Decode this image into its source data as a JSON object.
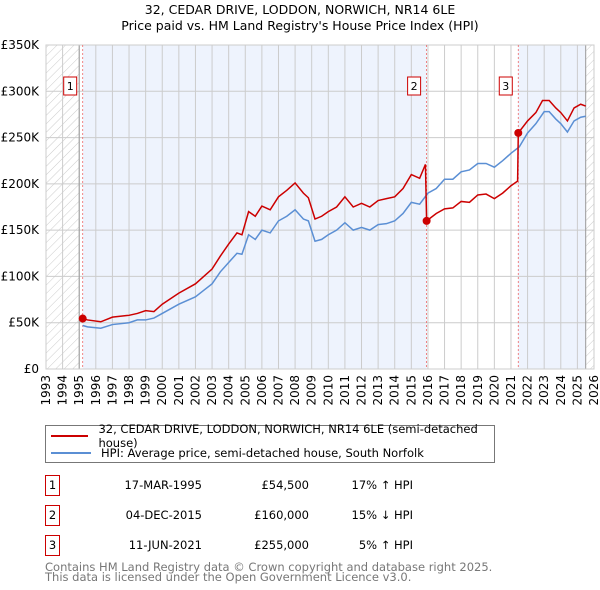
{
  "chart_data": {
    "type": "line",
    "title": "32, CEDAR DRIVE, LODDON, NORWICH, NR14 6LE",
    "subtitle": "Price paid vs. HM Land Registry's House Price Index (HPI)",
    "xlim": [
      1993,
      2026
    ],
    "ylim": [
      0,
      350000
    ],
    "yticks": [
      {
        "v": 0,
        "label": "£0"
      },
      {
        "v": 50000,
        "label": "£50K"
      },
      {
        "v": 100000,
        "label": "£100K"
      },
      {
        "v": 150000,
        "label": "£150K"
      },
      {
        "v": 200000,
        "label": "£200K"
      },
      {
        "v": 250000,
        "label": "£250K"
      },
      {
        "v": 300000,
        "label": "£300K"
      },
      {
        "v": 350000,
        "label": "£350K"
      }
    ],
    "xticks": [
      "1993",
      "1994",
      "1995",
      "1996",
      "1997",
      "1998",
      "1999",
      "2000",
      "2001",
      "2002",
      "2003",
      "2004",
      "2005",
      "2006",
      "2007",
      "2008",
      "2009",
      "2010",
      "2011",
      "2012",
      "2013",
      "2014",
      "2015",
      "2016",
      "2017",
      "2018",
      "2019",
      "2020",
      "2021",
      "2022",
      "2023",
      "2024",
      "2025",
      "2026"
    ],
    "grid": true,
    "hatched_ranges": [
      [
        1993,
        1995
      ],
      [
        2025.5,
        2026
      ]
    ],
    "shaded_ranges": [
      [
        1995.21,
        2015.92
      ],
      [
        2021.44,
        2025.5
      ]
    ],
    "colors": {
      "property": "#cc0000",
      "hpi": "#5b8fd4",
      "shade": "#eef3fd"
    },
    "series": [
      {
        "name": "32, CEDAR DRIVE, LODDON, NORWICH, NR14 6LE (semi-detached house)",
        "color": "#cc0000",
        "points": [
          [
            1995.21,
            54500
          ],
          [
            1995.5,
            53000
          ],
          [
            1996.3,
            51000
          ],
          [
            1997,
            56000
          ],
          [
            1998,
            58000
          ],
          [
            1998.5,
            60000
          ],
          [
            1999,
            63000
          ],
          [
            1999.5,
            62000
          ],
          [
            2000,
            70000
          ],
          [
            2001,
            82000
          ],
          [
            2002,
            92000
          ],
          [
            2002.5,
            100000
          ],
          [
            2003,
            108000
          ],
          [
            2003.5,
            122000
          ],
          [
            2004,
            135000
          ],
          [
            2004.5,
            147000
          ],
          [
            2004.8,
            145000
          ],
          [
            2005.2,
            170000
          ],
          [
            2005.6,
            165000
          ],
          [
            2006,
            176000
          ],
          [
            2006.5,
            172000
          ],
          [
            2007,
            186000
          ],
          [
            2007.5,
            193000
          ],
          [
            2008,
            201000
          ],
          [
            2008.5,
            190000
          ],
          [
            2008.8,
            185000
          ],
          [
            2009.2,
            162000
          ],
          [
            2009.6,
            165000
          ],
          [
            2010,
            170000
          ],
          [
            2010.5,
            175000
          ],
          [
            2011,
            186000
          ],
          [
            2011.5,
            175000
          ],
          [
            2012,
            179000
          ],
          [
            2012.5,
            175000
          ],
          [
            2013,
            182000
          ],
          [
            2013.5,
            184000
          ],
          [
            2014,
            186000
          ],
          [
            2014.5,
            195000
          ],
          [
            2015,
            210000
          ],
          [
            2015.5,
            206000
          ],
          [
            2015.85,
            221000
          ],
          [
            2015.92,
            160000
          ],
          [
            2016.5,
            168000
          ],
          [
            2017,
            173000
          ],
          [
            2017.5,
            174000
          ],
          [
            2018,
            181000
          ],
          [
            2018.5,
            180000
          ],
          [
            2019,
            188000
          ],
          [
            2019.5,
            189000
          ],
          [
            2020,
            184000
          ],
          [
            2020.5,
            190000
          ],
          [
            2021,
            198000
          ],
          [
            2021.4,
            203000
          ],
          [
            2021.44,
            255000
          ],
          [
            2022,
            268000
          ],
          [
            2022.5,
            277000
          ],
          [
            2022.9,
            290000
          ],
          [
            2023.3,
            290000
          ],
          [
            2023.7,
            282000
          ],
          [
            2024,
            277000
          ],
          [
            2024.4,
            268000
          ],
          [
            2024.8,
            282000
          ],
          [
            2025.2,
            286000
          ],
          [
            2025.5,
            284000
          ]
        ]
      },
      {
        "name": "HPI: Average price, semi-detached house, South Norfolk",
        "color": "#5b8fd4",
        "points": [
          [
            1995.21,
            47000
          ],
          [
            1995.5,
            45500
          ],
          [
            1996.3,
            44000
          ],
          [
            1997,
            48000
          ],
          [
            1998,
            50000
          ],
          [
            1998.5,
            53000
          ],
          [
            1999,
            53000
          ],
          [
            1999.5,
            55000
          ],
          [
            2000,
            60000
          ],
          [
            2001,
            70000
          ],
          [
            2002,
            78000
          ],
          [
            2002.5,
            85000
          ],
          [
            2003,
            92000
          ],
          [
            2003.5,
            105000
          ],
          [
            2004,
            115000
          ],
          [
            2004.5,
            125000
          ],
          [
            2004.8,
            124000
          ],
          [
            2005.2,
            145000
          ],
          [
            2005.6,
            140000
          ],
          [
            2006,
            150000
          ],
          [
            2006.5,
            147000
          ],
          [
            2007,
            160000
          ],
          [
            2007.5,
            165000
          ],
          [
            2008,
            172000
          ],
          [
            2008.5,
            162000
          ],
          [
            2008.8,
            160000
          ],
          [
            2009.2,
            138000
          ],
          [
            2009.6,
            140000
          ],
          [
            2010,
            145000
          ],
          [
            2010.5,
            150000
          ],
          [
            2011,
            158000
          ],
          [
            2011.5,
            150000
          ],
          [
            2012,
            153000
          ],
          [
            2012.5,
            150000
          ],
          [
            2013,
            156000
          ],
          [
            2013.5,
            157000
          ],
          [
            2014,
            160000
          ],
          [
            2014.5,
            168000
          ],
          [
            2015,
            180000
          ],
          [
            2015.5,
            178000
          ],
          [
            2016,
            190000
          ],
          [
            2016.5,
            195000
          ],
          [
            2017,
            205000
          ],
          [
            2017.5,
            205000
          ],
          [
            2018,
            213000
          ],
          [
            2018.5,
            215000
          ],
          [
            2019,
            222000
          ],
          [
            2019.5,
            222000
          ],
          [
            2020,
            218000
          ],
          [
            2020.5,
            225000
          ],
          [
            2021,
            233000
          ],
          [
            2021.5,
            240000
          ],
          [
            2022,
            255000
          ],
          [
            2022.5,
            265000
          ],
          [
            2023,
            278000
          ],
          [
            2023.3,
            278000
          ],
          [
            2023.7,
            270000
          ],
          [
            2024,
            265000
          ],
          [
            2024.4,
            256000
          ],
          [
            2024.8,
            268000
          ],
          [
            2025.2,
            272000
          ],
          [
            2025.5,
            273000
          ]
        ]
      }
    ],
    "sales": [
      {
        "id": "1",
        "x": 1995.21,
        "y": 54500,
        "date": "17-MAR-1995",
        "price": "£54,500",
        "hpi": "17% ↑ HPI"
      },
      {
        "id": "2",
        "x": 2015.92,
        "y": 160000,
        "date": "04-DEC-2015",
        "price": "£160,000",
        "hpi": "15% ↓ HPI"
      },
      {
        "id": "3",
        "x": 2021.44,
        "y": 255000,
        "date": "11-JUN-2021",
        "price": "£255,000",
        "hpi": "5% ↑ HPI"
      }
    ]
  },
  "legend": {
    "property": "32, CEDAR DRIVE, LODDON, NORWICH, NR14 6LE (semi-detached house)",
    "hpi": "HPI: Average price, semi-detached house, South Norfolk"
  },
  "footer": {
    "line1": "Contains HM Land Registry data © Crown copyright and database right 2025.",
    "line2": "This data is licensed under the Open Government Licence v3.0."
  }
}
